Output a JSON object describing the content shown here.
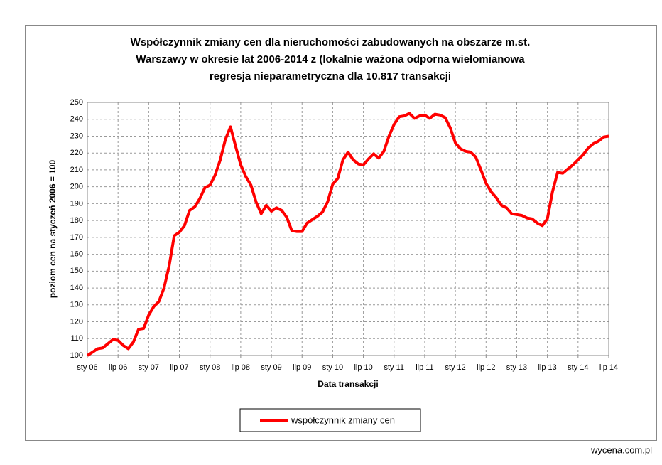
{
  "chart_data": {
    "type": "line",
    "title": [
      "Współczynnik zmiany cen dla nieruchomości zabudowanych na obszarze m.st.",
      "Warszawy w okresie lat 2006-2014 z (lokalnie ważona odporna wielomianowa",
      "regresja nieparametryczna dla 10.817 transakcji"
    ],
    "x_label": "Data transakcji",
    "y_label": "poziom cen na styczeń 2006 = 100",
    "categories": [
      "sty 06",
      null,
      null,
      null,
      null,
      null,
      "lip 06",
      null,
      null,
      null,
      null,
      null,
      "sty 07",
      null,
      null,
      null,
      null,
      null,
      "lip 07",
      null,
      null,
      null,
      null,
      null,
      "sty 08",
      null,
      null,
      null,
      null,
      null,
      "lip 08",
      null,
      null,
      null,
      null,
      null,
      "sty 09",
      null,
      null,
      null,
      null,
      null,
      "lip 09",
      null,
      null,
      null,
      null,
      null,
      "sty 10",
      null,
      null,
      null,
      null,
      null,
      "lip 10",
      null,
      null,
      null,
      null,
      null,
      "sty 11",
      null,
      null,
      null,
      null,
      null,
      "lip 11",
      null,
      null,
      null,
      null,
      null,
      "sty 12",
      null,
      null,
      null,
      null,
      null,
      "lip 12",
      null,
      null,
      null,
      null,
      null,
      "sty 13",
      null,
      null,
      null,
      null,
      null,
      "lip 13",
      null,
      null,
      null,
      null,
      null,
      "sty 14",
      null,
      null,
      null,
      null,
      null,
      "lip 14"
    ],
    "series": [
      {
        "name": "współczynnik zmiany cen",
        "color": "#ff0000",
        "values": [
          100,
          102,
          104,
          104.5,
          107,
          109.5,
          109,
          106,
          104,
          108,
          115.5,
          116,
          124,
          129,
          132,
          140,
          153,
          171,
          173,
          177,
          186,
          188,
          193,
          199.5,
          201,
          207,
          216,
          228,
          235.5,
          224,
          213,
          206,
          201,
          191,
          184,
          189,
          185.5,
          187.5,
          186,
          182,
          174,
          173.5,
          173.5,
          178.5,
          180.5,
          182.5,
          185,
          191,
          201.5,
          205,
          216,
          220.5,
          216,
          213.5,
          213,
          216.5,
          219.5,
          217,
          221,
          230,
          237,
          241.5,
          242,
          243.5,
          240.5,
          242,
          242.5,
          240.5,
          243,
          242.5,
          241,
          235,
          226,
          222.5,
          221,
          220.5,
          217.5,
          210,
          202,
          197,
          193.5,
          189,
          187.5,
          184,
          183.5,
          183,
          181.5,
          181,
          178.5,
          177,
          181,
          197,
          208.5,
          208,
          210.5,
          213,
          216,
          219,
          223,
          225.5,
          227,
          229.5,
          230
        ]
      }
    ],
    "ylim": [
      100,
      250
    ],
    "yticks": [
      100,
      110,
      120,
      130,
      140,
      150,
      160,
      170,
      180,
      190,
      200,
      210,
      220,
      230,
      240,
      250
    ],
    "grid": true,
    "legend": "bottom",
    "watermark": "wycena.com.pl"
  }
}
